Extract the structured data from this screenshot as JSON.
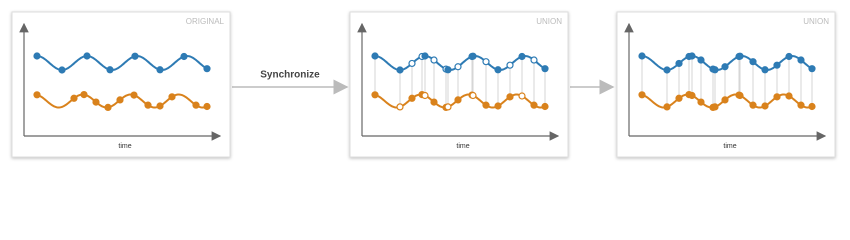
{
  "panels": [
    {
      "label": "ORIGINAL",
      "axis_label": "time"
    },
    {
      "label": "UNION",
      "axis_label": "time"
    },
    {
      "label": "UNION",
      "axis_label": "time"
    }
  ],
  "connector_label": "Synchronize"
}
